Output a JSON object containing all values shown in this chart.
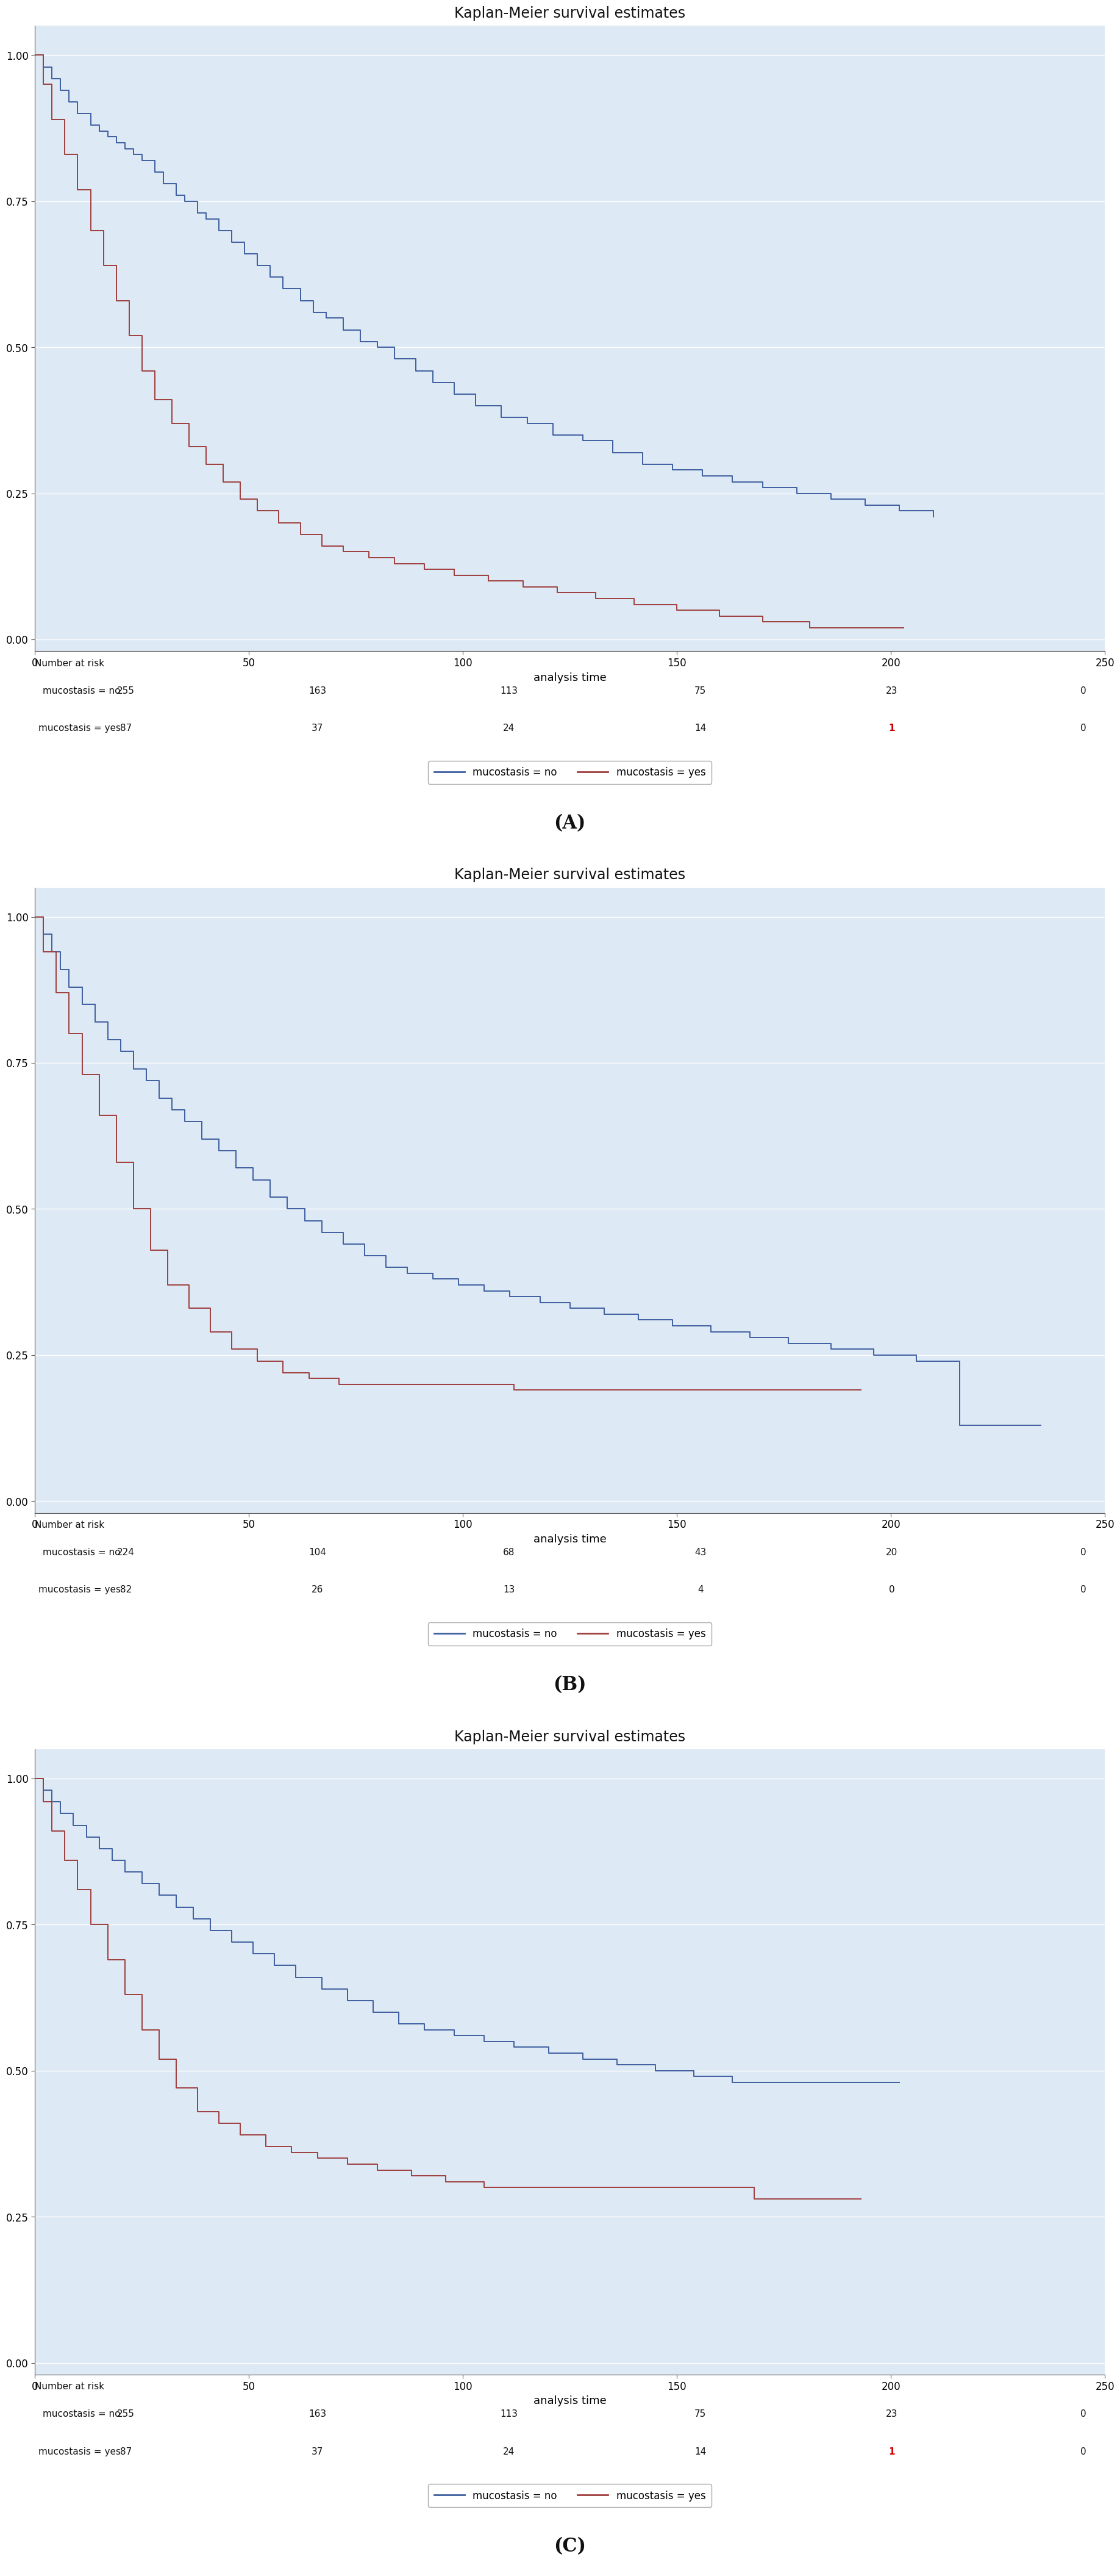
{
  "title": "Kaplan-Meier survival estimates",
  "xlabel": "analysis time",
  "background_color": "#dde9f5",
  "blue_color": "#3f5f9f",
  "red_color": "#9f3f3f",
  "xlim": [
    0,
    250
  ],
  "ylim": [
    -0.02,
    1.05
  ],
  "xticks": [
    0,
    50,
    100,
    150,
    200,
    250
  ],
  "yticks": [
    0.0,
    0.25,
    0.5,
    0.75,
    1.0
  ],
  "panel_labels": [
    "(A)",
    "(B)",
    "(C)"
  ],
  "risk_label": "Number at risk",
  "risk_rows": [
    [
      "mucostasis = no",
      "mucostasis = yes"
    ],
    [
      "mucostasis = no",
      "mucostasis = yes"
    ],
    [
      "mucostasis = no",
      "mucostasis = yes"
    ]
  ],
  "risk_numbers": [
    [
      [
        255,
        163,
        113,
        75,
        23,
        0
      ],
      [
        87,
        37,
        24,
        14,
        1,
        0
      ]
    ],
    [
      [
        224,
        104,
        68,
        43,
        20,
        0
      ],
      [
        82,
        26,
        13,
        4,
        0,
        0
      ]
    ],
    [
      [
        255,
        163,
        113,
        75,
        23,
        0
      ],
      [
        87,
        37,
        24,
        14,
        1,
        0
      ]
    ]
  ],
  "highlight_numbers": [
    [
      [
        false,
        false,
        false,
        false,
        false,
        false
      ],
      [
        false,
        false,
        false,
        false,
        true,
        false
      ]
    ],
    [
      [
        false,
        false,
        false,
        false,
        false,
        false
      ],
      [
        false,
        false,
        false,
        false,
        false,
        false
      ]
    ],
    [
      [
        false,
        false,
        false,
        false,
        false,
        false
      ],
      [
        false,
        false,
        false,
        false,
        true,
        false
      ]
    ]
  ],
  "panels": [
    {
      "blue": {
        "t": [
          0,
          2,
          4,
          6,
          8,
          10,
          13,
          15,
          17,
          19,
          21,
          23,
          25,
          28,
          30,
          33,
          35,
          38,
          40,
          43,
          46,
          49,
          52,
          55,
          58,
          62,
          65,
          68,
          72,
          76,
          80,
          84,
          89,
          93,
          98,
          103,
          109,
          115,
          121,
          128,
          135,
          142,
          149,
          156,
          163,
          170,
          178,
          186,
          194,
          202,
          210
        ],
        "s": [
          1.0,
          0.98,
          0.96,
          0.94,
          0.92,
          0.9,
          0.88,
          0.87,
          0.86,
          0.85,
          0.84,
          0.83,
          0.82,
          0.8,
          0.78,
          0.76,
          0.75,
          0.73,
          0.72,
          0.7,
          0.68,
          0.66,
          0.64,
          0.62,
          0.6,
          0.58,
          0.56,
          0.55,
          0.53,
          0.51,
          0.5,
          0.48,
          0.46,
          0.44,
          0.42,
          0.4,
          0.38,
          0.37,
          0.35,
          0.34,
          0.32,
          0.3,
          0.29,
          0.28,
          0.27,
          0.26,
          0.25,
          0.24,
          0.23,
          0.22,
          0.21
        ]
      },
      "red": {
        "t": [
          0,
          2,
          4,
          7,
          10,
          13,
          16,
          19,
          22,
          25,
          28,
          32,
          36,
          40,
          44,
          48,
          52,
          57,
          62,
          67,
          72,
          78,
          84,
          91,
          98,
          106,
          114,
          122,
          131,
          140,
          150,
          160,
          170,
          181,
          192,
          203
        ],
        "s": [
          1.0,
          0.95,
          0.89,
          0.83,
          0.77,
          0.7,
          0.64,
          0.58,
          0.52,
          0.46,
          0.41,
          0.37,
          0.33,
          0.3,
          0.27,
          0.24,
          0.22,
          0.2,
          0.18,
          0.16,
          0.15,
          0.14,
          0.13,
          0.12,
          0.11,
          0.1,
          0.09,
          0.08,
          0.07,
          0.06,
          0.05,
          0.04,
          0.03,
          0.02,
          0.02,
          0.02
        ]
      }
    },
    {
      "blue": {
        "t": [
          0,
          2,
          4,
          6,
          8,
          11,
          14,
          17,
          20,
          23,
          26,
          29,
          32,
          35,
          39,
          43,
          47,
          51,
          55,
          59,
          63,
          67,
          72,
          77,
          82,
          87,
          93,
          99,
          105,
          111,
          118,
          125,
          133,
          141,
          149,
          158,
          167,
          176,
          186,
          196,
          206,
          216,
          226,
          235
        ],
        "s": [
          1.0,
          0.97,
          0.94,
          0.91,
          0.88,
          0.85,
          0.82,
          0.79,
          0.77,
          0.74,
          0.72,
          0.69,
          0.67,
          0.65,
          0.62,
          0.6,
          0.57,
          0.55,
          0.52,
          0.5,
          0.48,
          0.46,
          0.44,
          0.42,
          0.4,
          0.39,
          0.38,
          0.37,
          0.36,
          0.35,
          0.34,
          0.33,
          0.32,
          0.31,
          0.3,
          0.29,
          0.28,
          0.27,
          0.26,
          0.25,
          0.24,
          0.13,
          0.13,
          0.13
        ]
      },
      "red": {
        "t": [
          0,
          2,
          5,
          8,
          11,
          15,
          19,
          23,
          27,
          31,
          36,
          41,
          46,
          52,
          58,
          64,
          71,
          78,
          86,
          94,
          103,
          112,
          122,
          133,
          144,
          156,
          168,
          180,
          193
        ],
        "s": [
          1.0,
          0.94,
          0.87,
          0.8,
          0.73,
          0.66,
          0.58,
          0.5,
          0.43,
          0.37,
          0.33,
          0.29,
          0.26,
          0.24,
          0.22,
          0.21,
          0.2,
          0.2,
          0.2,
          0.2,
          0.2,
          0.19,
          0.19,
          0.19,
          0.19,
          0.19,
          0.19,
          0.19,
          0.19
        ]
      }
    },
    {
      "blue": {
        "t": [
          0,
          2,
          4,
          6,
          9,
          12,
          15,
          18,
          21,
          25,
          29,
          33,
          37,
          41,
          46,
          51,
          56,
          61,
          67,
          73,
          79,
          85,
          91,
          98,
          105,
          112,
          120,
          128,
          136,
          145,
          154,
          163,
          172,
          182,
          192,
          202
        ],
        "s": [
          1.0,
          0.98,
          0.96,
          0.94,
          0.92,
          0.9,
          0.88,
          0.86,
          0.84,
          0.82,
          0.8,
          0.78,
          0.76,
          0.74,
          0.72,
          0.7,
          0.68,
          0.66,
          0.64,
          0.62,
          0.6,
          0.58,
          0.57,
          0.56,
          0.55,
          0.54,
          0.53,
          0.52,
          0.51,
          0.5,
          0.49,
          0.48,
          0.48,
          0.48,
          0.48,
          0.48
        ]
      },
      "red": {
        "t": [
          0,
          2,
          4,
          7,
          10,
          13,
          17,
          21,
          25,
          29,
          33,
          38,
          43,
          48,
          54,
          60,
          66,
          73,
          80,
          88,
          96,
          105,
          114,
          124,
          134,
          145,
          156,
          168,
          180,
          193
        ],
        "s": [
          1.0,
          0.96,
          0.91,
          0.86,
          0.81,
          0.75,
          0.69,
          0.63,
          0.57,
          0.52,
          0.47,
          0.43,
          0.41,
          0.39,
          0.37,
          0.36,
          0.35,
          0.34,
          0.33,
          0.32,
          0.31,
          0.3,
          0.3,
          0.3,
          0.3,
          0.3,
          0.3,
          0.28,
          0.28,
          0.28
        ]
      }
    }
  ]
}
